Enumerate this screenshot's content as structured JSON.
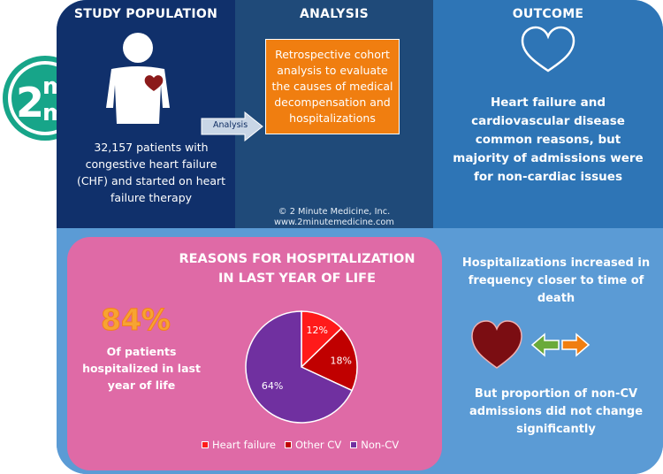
{
  "logo": {
    "line1": "2",
    "line2": "m",
    "line3": "m",
    "tm": "™"
  },
  "study_population": {
    "title": "STUDY POPULATION",
    "text": "32,157 patients with congestive heart failure (CHF) and started on heart failure therapy"
  },
  "analysis_arrow_label": "Analysis",
  "analysis": {
    "title": "ANALYSIS",
    "box_text": "Retrospective cohort analysis to evaluate the causes of medical decompensation and hospitalizations",
    "copyright": "© 2 Minute Medicine, Inc.",
    "website": "www.2minutemedicine.com"
  },
  "outcome": {
    "title": "OUTCOME",
    "text": "Heart failure and cardiovascular disease common reasons, but majority of admissions were for non-cardiac issues"
  },
  "hospitalization": {
    "title_line1": "REASONS FOR HOSPITALIZATION",
    "title_line2": "IN LAST YEAR OF LIFE",
    "big_percent": "84%",
    "percent_desc": "Of patients hospitalized in last year of life"
  },
  "right": {
    "text1": "Hospitalizations increased in frequency closer to time of death",
    "text2": "But proportion of non-CV admissions did not change significantly"
  },
  "colors": {
    "heart_failure": "#ff1a1a",
    "other_cv": "#c00000",
    "non_cv": "#7030a0",
    "orange": "#f07e10",
    "pink": "#df6aa6",
    "navy": "#10306b",
    "logo_teal": "#17a589"
  },
  "chart_data": {
    "type": "pie",
    "categories": [
      "Heart failure",
      "Other CV",
      "Non-CV"
    ],
    "values": [
      12,
      18,
      64
    ],
    "labels": [
      "12%",
      "18%",
      "64%"
    ],
    "legend_position": "bottom"
  }
}
